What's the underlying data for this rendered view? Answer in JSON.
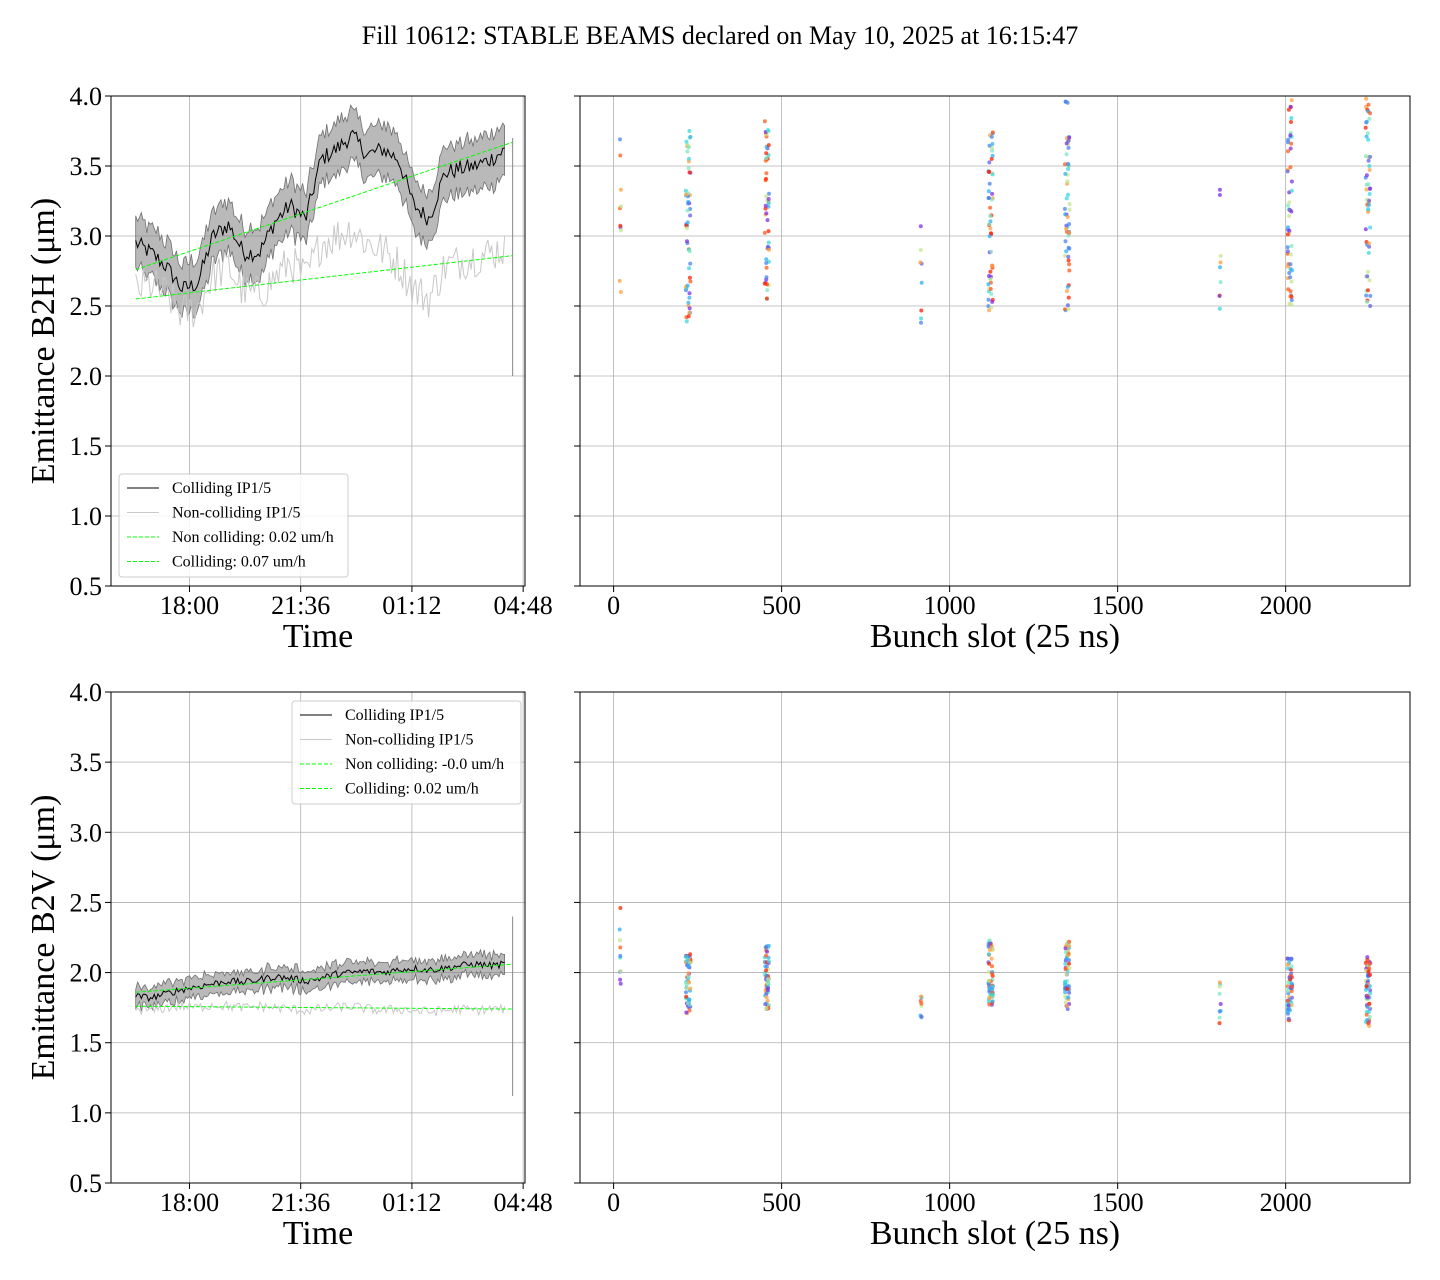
{
  "title": "Fill 10612: STABLE BEAMS declared on May 10, 2025 at 16:15:47",
  "chart_data": [
    {
      "id": "b2h-time",
      "type": "line",
      "xlabel": "Time",
      "ylabel": "Emittance B2H (μm)",
      "x_unit": "hours since 16:15:47",
      "xlim": [
        -0.8,
        12.6
      ],
      "ylim": [
        0.5,
        4.0
      ],
      "x_ticks": [
        {
          "value": 1.74,
          "label": "18:00"
        },
        {
          "value": 5.34,
          "label": "21:36"
        },
        {
          "value": 8.94,
          "label": "01:12"
        },
        {
          "value": 12.54,
          "label": "04:48"
        }
      ],
      "y_ticks": [
        "0.5",
        "1.0",
        "1.5",
        "2.0",
        "2.5",
        "3.0",
        "3.5",
        "4.0"
      ],
      "grid": true,
      "legend": {
        "position": "lower-left",
        "entries": [
          "Colliding IP1/5",
          "Non-colliding IP1/5",
          "Non colliding: 0.02 um/h",
          "Colliding: 0.07 um/h"
        ]
      },
      "series": [
        {
          "name": "Colliding IP1/5",
          "color": "#000000",
          "band_color": "#808080",
          "x": [
            0,
            0.5,
            1,
            1.5,
            2,
            2.5,
            3,
            3.5,
            4,
            4.5,
            5,
            5.5,
            6,
            6.5,
            7,
            7.5,
            8,
            8.5,
            9,
            9.5,
            10,
            10.5,
            11,
            11.5,
            12
          ],
          "y": [
            2.95,
            2.88,
            2.78,
            2.62,
            2.66,
            3.0,
            3.08,
            2.88,
            2.88,
            3.1,
            3.22,
            3.12,
            3.55,
            3.62,
            3.72,
            3.58,
            3.62,
            3.55,
            3.22,
            3.12,
            3.45,
            3.48,
            3.5,
            3.55,
            3.62
          ],
          "band_halfwidth": 0.18
        },
        {
          "name": "Non-colliding IP1/5",
          "color": "#c8c8c8",
          "x": [
            0,
            0.5,
            1,
            1.5,
            2,
            2.5,
            3,
            3.5,
            4,
            4.5,
            5,
            5.5,
            6,
            6.5,
            7,
            7.5,
            8,
            8.5,
            9,
            9.5,
            10,
            10.5,
            11,
            11.5,
            12
          ],
          "y": [
            2.62,
            2.65,
            2.58,
            2.45,
            2.48,
            2.72,
            2.78,
            2.6,
            2.58,
            2.7,
            2.82,
            2.7,
            2.95,
            3.0,
            3.05,
            2.95,
            2.9,
            2.8,
            2.62,
            2.55,
            2.78,
            2.82,
            2.85,
            2.88,
            2.92
          ]
        },
        {
          "name": "Non colliding: 0.02 um/h",
          "color": "#00ff00",
          "dashed": true,
          "x": [
            0,
            12.2
          ],
          "y": [
            2.55,
            2.86
          ]
        },
        {
          "name": "Colliding: 0.07 um/h",
          "color": "#00ff00",
          "dashed": true,
          "x": [
            0,
            12.2
          ],
          "y": [
            2.76,
            3.67
          ]
        }
      ]
    },
    {
      "id": "b2h-slot",
      "type": "scatter",
      "xlabel": "Bunch slot (25 ns)",
      "ylabel": "",
      "xlim": [
        -100,
        2370
      ],
      "ylim": [
        0.5,
        4.0
      ],
      "x_ticks": [
        "0",
        "500",
        "1000",
        "1500",
        "2000"
      ],
      "grid": true,
      "groups": [
        {
          "slot": 20,
          "ymin": 2.6,
          "ymax": 3.69,
          "count": 10
        },
        {
          "slot": 222,
          "ymin": 2.39,
          "ymax": 3.75,
          "count": 55
        },
        {
          "slot": 456,
          "ymin": 2.55,
          "ymax": 3.82,
          "count": 55
        },
        {
          "slot": 915,
          "ymin": 2.38,
          "ymax": 3.07,
          "count": 8
        },
        {
          "slot": 1122,
          "ymin": 2.47,
          "ymax": 3.74,
          "count": 55
        },
        {
          "slot": 1350,
          "ymin": 2.47,
          "ymax": 3.96,
          "count": 55
        },
        {
          "slot": 1805,
          "ymin": 2.48,
          "ymax": 3.33,
          "count": 9
        },
        {
          "slot": 2012,
          "ymin": 2.51,
          "ymax": 3.97,
          "count": 55
        },
        {
          "slot": 2245,
          "ymin": 2.5,
          "ymax": 3.98,
          "count": 55
        }
      ]
    },
    {
      "id": "b2v-time",
      "type": "line",
      "xlabel": "Time",
      "ylabel": "Emittance B2V (μm)",
      "x_unit": "hours since 16:15:47",
      "xlim": [
        -0.8,
        12.6
      ],
      "ylim": [
        0.5,
        4.0
      ],
      "x_ticks": [
        {
          "value": 1.74,
          "label": "18:00"
        },
        {
          "value": 5.34,
          "label": "21:36"
        },
        {
          "value": 8.94,
          "label": "01:12"
        },
        {
          "value": 12.54,
          "label": "04:48"
        }
      ],
      "y_ticks": [
        "0.5",
        "1.0",
        "1.5",
        "2.0",
        "2.5",
        "3.0",
        "3.5",
        "4.0"
      ],
      "grid": true,
      "legend": {
        "position": "upper-right",
        "entries": [
          "Colliding IP1/5",
          "Non-colliding IP1/5",
          "Non colliding: -0.0 um/h",
          "Colliding: 0.02 um/h"
        ]
      },
      "series": [
        {
          "name": "Colliding IP1/5",
          "color": "#000000",
          "band_color": "#808080",
          "x": [
            0,
            0.5,
            1,
            1.5,
            2,
            2.5,
            3,
            3.5,
            4,
            4.5,
            5,
            5.5,
            6,
            6.5,
            7,
            7.5,
            8,
            8.5,
            9,
            9.5,
            10,
            10.5,
            11,
            11.5,
            12
          ],
          "y": [
            1.83,
            1.82,
            1.85,
            1.88,
            1.9,
            1.92,
            1.94,
            1.93,
            1.95,
            1.97,
            1.96,
            1.94,
            1.96,
            1.99,
            2.0,
            2.01,
            2.0,
            2.02,
            2.03,
            2.02,
            2.03,
            2.05,
            2.06,
            2.05,
            2.06
          ],
          "band_halfwidth": 0.07
        },
        {
          "name": "Non-colliding IP1/5",
          "color": "#c8c8c8",
          "x": [
            0,
            0.5,
            1,
            1.5,
            2,
            2.5,
            3,
            3.5,
            4,
            4.5,
            5,
            5.5,
            6,
            6.5,
            7,
            7.5,
            8,
            8.5,
            9,
            9.5,
            10,
            10.5,
            11,
            11.5,
            12
          ],
          "y": [
            1.74,
            1.73,
            1.75,
            1.76,
            1.75,
            1.77,
            1.76,
            1.75,
            1.76,
            1.75,
            1.74,
            1.73,
            1.74,
            1.75,
            1.76,
            1.74,
            1.73,
            1.74,
            1.73,
            1.72,
            1.73,
            1.74,
            1.73,
            1.74,
            1.74
          ]
        },
        {
          "name": "Non colliding: -0.0 um/h",
          "color": "#00ff00",
          "dashed": true,
          "x": [
            0,
            12.2
          ],
          "y": [
            1.76,
            1.74
          ]
        },
        {
          "name": "Colliding: 0.02 um/h",
          "color": "#00ff00",
          "dashed": true,
          "x": [
            0,
            12.2
          ],
          "y": [
            1.86,
            2.06
          ]
        }
      ]
    },
    {
      "id": "b2v-slot",
      "type": "scatter",
      "xlabel": "Bunch slot (25 ns)",
      "ylabel": "",
      "xlim": [
        -100,
        2370
      ],
      "ylim": [
        0.5,
        4.0
      ],
      "x_ticks": [
        "0",
        "500",
        "1000",
        "1500",
        "2000"
      ],
      "grid": true,
      "groups": [
        {
          "slot": 20,
          "ymin": 1.92,
          "ymax": 2.46,
          "count": 10
        },
        {
          "slot": 222,
          "ymin": 1.71,
          "ymax": 2.13,
          "count": 55
        },
        {
          "slot": 456,
          "ymin": 1.74,
          "ymax": 2.19,
          "count": 55
        },
        {
          "slot": 915,
          "ymin": 1.68,
          "ymax": 1.83,
          "count": 8
        },
        {
          "slot": 1122,
          "ymin": 1.77,
          "ymax": 2.23,
          "count": 55
        },
        {
          "slot": 1350,
          "ymin": 1.74,
          "ymax": 2.22,
          "count": 55
        },
        {
          "slot": 1805,
          "ymin": 1.64,
          "ymax": 1.93,
          "count": 9
        },
        {
          "slot": 2012,
          "ymin": 1.66,
          "ymax": 2.1,
          "count": 55
        },
        {
          "slot": 2245,
          "ymin": 1.62,
          "ymax": 2.11,
          "count": 55
        }
      ]
    }
  ]
}
